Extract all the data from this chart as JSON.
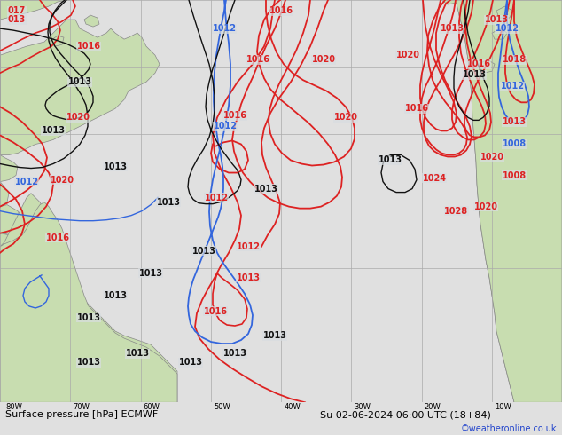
{
  "title_left": "Surface pressure [hPa] ECMWF",
  "title_right": "Su 02-06-2024 06:00 UTC (18+84)",
  "copyright": "©weatheronline.co.uk",
  "bg_color": "#d8dde0",
  "land_color": "#c8ddb0",
  "land_edge": "#888888",
  "grid_color": "#aaaaaa",
  "red": "#dd2222",
  "blue": "#3366dd",
  "black": "#111111",
  "figsize": [
    6.34,
    4.9
  ],
  "dpi": 100,
  "bar_color": "#e0e0e0",
  "fs_title": 8,
  "fs_label": 7,
  "fs_copy": 7
}
